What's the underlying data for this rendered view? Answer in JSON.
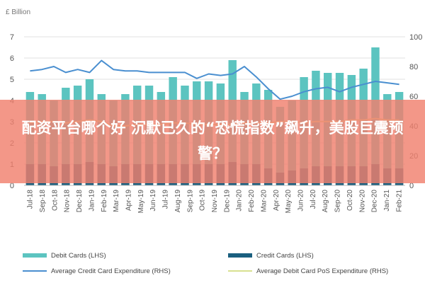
{
  "overlay": {
    "headline": "配资平台哪个好 沉默已久的“恐慌指数”飙升，美股巨震预警？"
  },
  "chart_data": {
    "type": "bar",
    "unit_label": "£ Billion",
    "categories": [
      "Jul-18",
      "Aug-18",
      "Sep-18",
      "Oct-18",
      "Nov-18",
      "Dec-18",
      "Jan-19",
      "Feb-19",
      "Mar-19",
      "Apr-19",
      "May-19",
      "Jun-19",
      "Jul-19",
      "Aug-19",
      "Sep-19",
      "Oct-19",
      "Nov-19",
      "Dec-19",
      "Jan-20",
      "Feb-20",
      "Mar-20",
      "Apr-20",
      "May-20",
      "Jun-20",
      "Jul-20",
      "Aug-20",
      "Sep-20",
      "Oct-20",
      "Nov-20",
      "Dec-20",
      "Jan-21",
      "Feb-21"
    ],
    "x_tick_labels": [
      "Jul-18",
      "Sep-18",
      "Oct-18",
      "Nov-18",
      "Dec-18",
      "Jan-19",
      "Feb-19",
      "Mar-19",
      "Apr-19",
      "May-19",
      "Jun-19",
      "Jul-19",
      "Aug-19",
      "Sep-19",
      "Oct-19",
      "Nov-19",
      "Dec-19",
      "Jan-20",
      "Feb-20",
      "Mar-20",
      "Apr-20",
      "May-20",
      "Jun-20",
      "Jul-20",
      "Aug-20",
      "Sep-20",
      "Oct-20",
      "Nov-20",
      "Dec-20",
      "Jan-21",
      "Feb-21"
    ],
    "y_left": {
      "ticks": [
        0,
        1,
        2,
        3,
        4,
        5,
        6,
        7
      ],
      "lim": [
        0,
        7
      ]
    },
    "y_right": {
      "ticks": [
        0,
        20,
        40,
        60,
        80,
        100
      ],
      "lim": [
        0,
        100
      ]
    },
    "grid": true,
    "legend_position": "bottom",
    "series": [
      {
        "name": "Debit Cards (LHS)",
        "kind": "bar",
        "axis": "left",
        "color": "#5cc4c0",
        "values": [
          4.4,
          4.3,
          4.0,
          4.6,
          4.7,
          5.0,
          4.3,
          4.0,
          4.3,
          4.7,
          4.7,
          4.4,
          5.1,
          4.7,
          4.9,
          4.9,
          4.8,
          5.9,
          4.4,
          4.8,
          4.5,
          3.7,
          4.0,
          5.1,
          5.4,
          5.3,
          5.3,
          5.2,
          5.5,
          6.5,
          4.3,
          4.4
        ]
      },
      {
        "name": "Credit Cards (LHS)",
        "kind": "bar",
        "axis": "left",
        "color": "#1a5f7f",
        "values": [
          1.0,
          1.0,
          0.9,
          1.0,
          1.0,
          1.1,
          1.0,
          0.9,
          1.0,
          1.0,
          1.0,
          1.0,
          1.0,
          1.0,
          1.0,
          1.0,
          1.0,
          1.1,
          1.0,
          1.0,
          0.8,
          0.6,
          0.7,
          0.8,
          0.9,
          0.9,
          0.9,
          0.9,
          0.9,
          1.0,
          0.8,
          0.8
        ]
      },
      {
        "name": "Average Credit Card Expenditure (RHS)",
        "kind": "line",
        "axis": "right",
        "color": "#4a8fd0",
        "values": [
          77,
          78,
          80,
          76,
          78,
          76,
          84,
          78,
          77,
          77,
          76,
          76,
          76,
          76,
          72,
          75,
          74,
          75,
          80,
          73,
          65,
          58,
          60,
          63,
          65,
          66,
          63,
          66,
          68,
          70,
          69,
          68
        ]
      },
      {
        "name": "Average Debit Card PoS Expenditure (RHS)",
        "kind": "line",
        "axis": "right",
        "color": "#d8e090",
        "values": [
          42,
          43,
          43,
          42,
          43,
          44,
          43,
          40,
          40,
          41,
          41,
          41,
          42,
          42,
          41,
          41,
          41,
          41,
          42,
          42,
          42,
          43,
          43,
          42,
          43,
          43,
          43,
          44,
          44,
          45,
          44,
          44
        ]
      }
    ]
  }
}
